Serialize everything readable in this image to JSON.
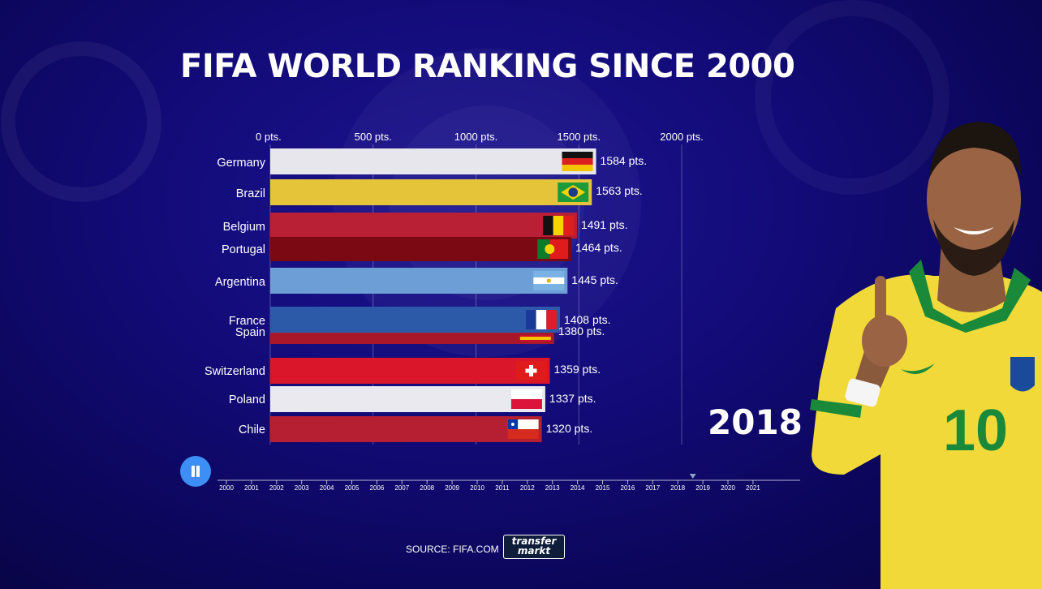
{
  "title": "FIFA WORLD RANKING SINCE 2000",
  "current_year": "2018",
  "source": "SOURCE: FIFA.COM",
  "logo": {
    "line1": "transfer",
    "line2": "markt"
  },
  "colors": {
    "background": "#120b78",
    "gridline": "#ffffff",
    "pause_button": "#3d8ef5"
  },
  "player_image": {
    "name": "player-photo-brazil-10",
    "jersey_number": "10"
  },
  "chart_data": {
    "type": "bar",
    "orientation": "horizontal",
    "title": "FIFA WORLD RANKING SINCE 2000",
    "year": "2018",
    "xlim": [
      0,
      2000
    ],
    "value_suffix": " pts.",
    "x_ticks": [
      {
        "value": 0,
        "label": "0 pts."
      },
      {
        "value": 500,
        "label": "500 pts."
      },
      {
        "value": 1000,
        "label": "1000 pts."
      },
      {
        "value": 1500,
        "label": "1500 pts."
      },
      {
        "value": 2000,
        "label": "2000 pts."
      }
    ],
    "grid": true,
    "bars": [
      {
        "country": "Germany",
        "value": 1584,
        "label": "1584 pts.",
        "color": "#e6e6ec",
        "flag": "germany"
      },
      {
        "country": "Brazil",
        "value": 1563,
        "label": "1563 pts.",
        "color": "#e5c43a",
        "flag": "brazil"
      },
      {
        "country": "Belgium",
        "value": 1491,
        "label": "1491 pts.",
        "color": "#b91f35",
        "flag": "belgium"
      },
      {
        "country": "Portugal",
        "value": 1464,
        "label": "1464 pts.",
        "color": "#7a0914",
        "flag": "portugal"
      },
      {
        "country": "Argentina",
        "value": 1445,
        "label": "1445 pts.",
        "color": "#6d9ed6",
        "flag": "argentina"
      },
      {
        "country": "France",
        "value": 1408,
        "label": "1408 pts.",
        "color": "#2d5aa8",
        "flag": "france"
      },
      {
        "country": "Spain",
        "value": 1380,
        "label": "1380 pts.",
        "color": "#a8182a",
        "flag": "spain"
      },
      {
        "country": "Switzerland",
        "value": 1359,
        "label": "1359 pts.",
        "color": "#d9162a",
        "flag": "switzerland"
      },
      {
        "country": "Poland",
        "value": 1337,
        "label": "1337 pts.",
        "color": "#e9e9ef",
        "flag": "poland"
      },
      {
        "country": "Chile",
        "value": 1320,
        "label": "1320 pts.",
        "color": "#b61f32",
        "flag": "chile"
      }
    ]
  },
  "timeline": {
    "years": [
      "2000",
      "2001",
      "2002",
      "2003",
      "2004",
      "2005",
      "2006",
      "2007",
      "2008",
      "2009",
      "2010",
      "2011",
      "2012",
      "2013",
      "2014",
      "2015",
      "2016",
      "2017",
      "2018",
      "2019",
      "2020",
      "2021"
    ],
    "current_index": 18.6
  }
}
